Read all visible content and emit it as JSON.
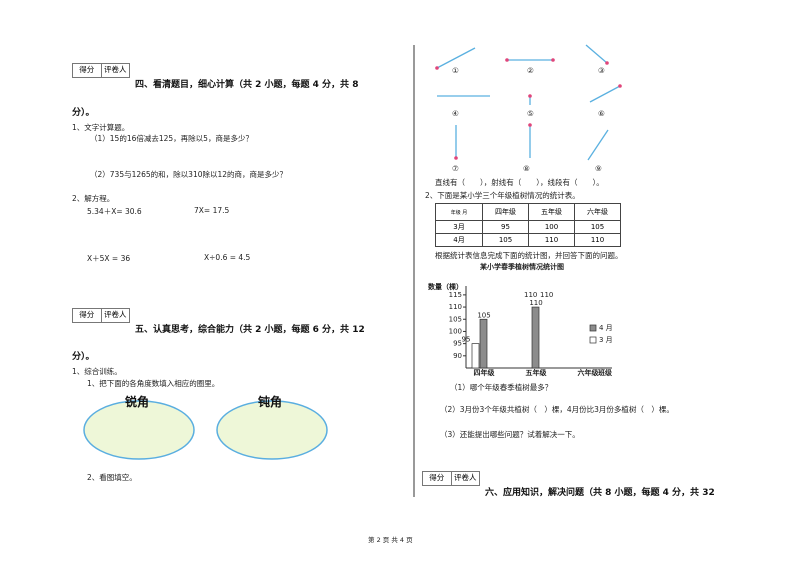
{
  "section4": {
    "score_box": [
      "得分",
      "评卷人"
    ],
    "title": "四、看清题目，细心计算（共 2 小题，每题 4 分，共 8",
    "title_cont": "分）。",
    "q1": "1、文字计算题。",
    "q1_1": "（1）15的16倍减去125，再除以5，商是多少？",
    "q1_2": "（2）735与1265的和，除以310除以12的商，商是多少？",
    "q2": "2、解方程。",
    "equations": [
      "5.34＋X= 30.6",
      "7X= 17.5",
      "X＋5X = 36",
      "X÷0.6 = 4.5"
    ]
  },
  "section5": {
    "score_box": [
      "得分",
      "评卷人"
    ],
    "title": "五、认真思考，综合能力（共 2 小题，每题 6 分，共 12",
    "title_cont": "分）。",
    "q1": "1、综合训练。",
    "q1_1": "1、把下面的各角度数填入相应的圈里。",
    "ovals": [
      "锐角",
      "钝角"
    ],
    "q2": "2、看图填空。"
  },
  "right": {
    "figure_labels": [
      "①",
      "②",
      "③",
      "④",
      "⑤",
      "⑥",
      "⑦",
      "⑧",
      "⑨"
    ],
    "fill": "直线有（　　），射线有（　　），线段有（　　）。",
    "q2": "2、下面是某小学三个年级植树情况的统计表。",
    "table": {
      "corner": [
        "年级",
        "月"
      ],
      "header": [
        "四年级",
        "五年级",
        "六年级"
      ],
      "rows": [
        [
          "3月",
          "95",
          "100",
          "105"
        ],
        [
          "4月",
          "105",
          "110",
          "110"
        ]
      ]
    },
    "instruction": "根据统计表信息完成下面的统计图，并回答下面的问题。",
    "chart": {
      "type": "bar",
      "title": "某小学春季植树情况统计图",
      "y_label": "数量（棵）",
      "x_label": "班级",
      "categories": [
        "四年级",
        "五年级",
        "六年级"
      ],
      "series": [
        {
          "name": "4 月",
          "color": "#8c8c8c",
          "values": [
            105,
            110,
            null
          ]
        },
        {
          "name": "3 月",
          "color": "#ffffff",
          "values": [
            95,
            null,
            null
          ]
        }
      ],
      "floating_labels": [
        "110",
        "110"
      ],
      "ylim": [
        85,
        117
      ],
      "yticks": [
        90,
        95,
        100,
        105,
        110,
        115
      ]
    },
    "questions": [
      "（1）哪个年级春季植树最多？",
      "（2）3月份3个年级共植树（　）棵，4月份比3月份多植树（　）棵。",
      "（3）还能提出哪些问题？试着解决一下。"
    ]
  },
  "section6": {
    "score_box": [
      "得分",
      "评卷人"
    ],
    "title": "六、应用知识，解决问题（共 8 小题，每题 4 分，共 32"
  },
  "footer": "第 2 页 共 4 页"
}
